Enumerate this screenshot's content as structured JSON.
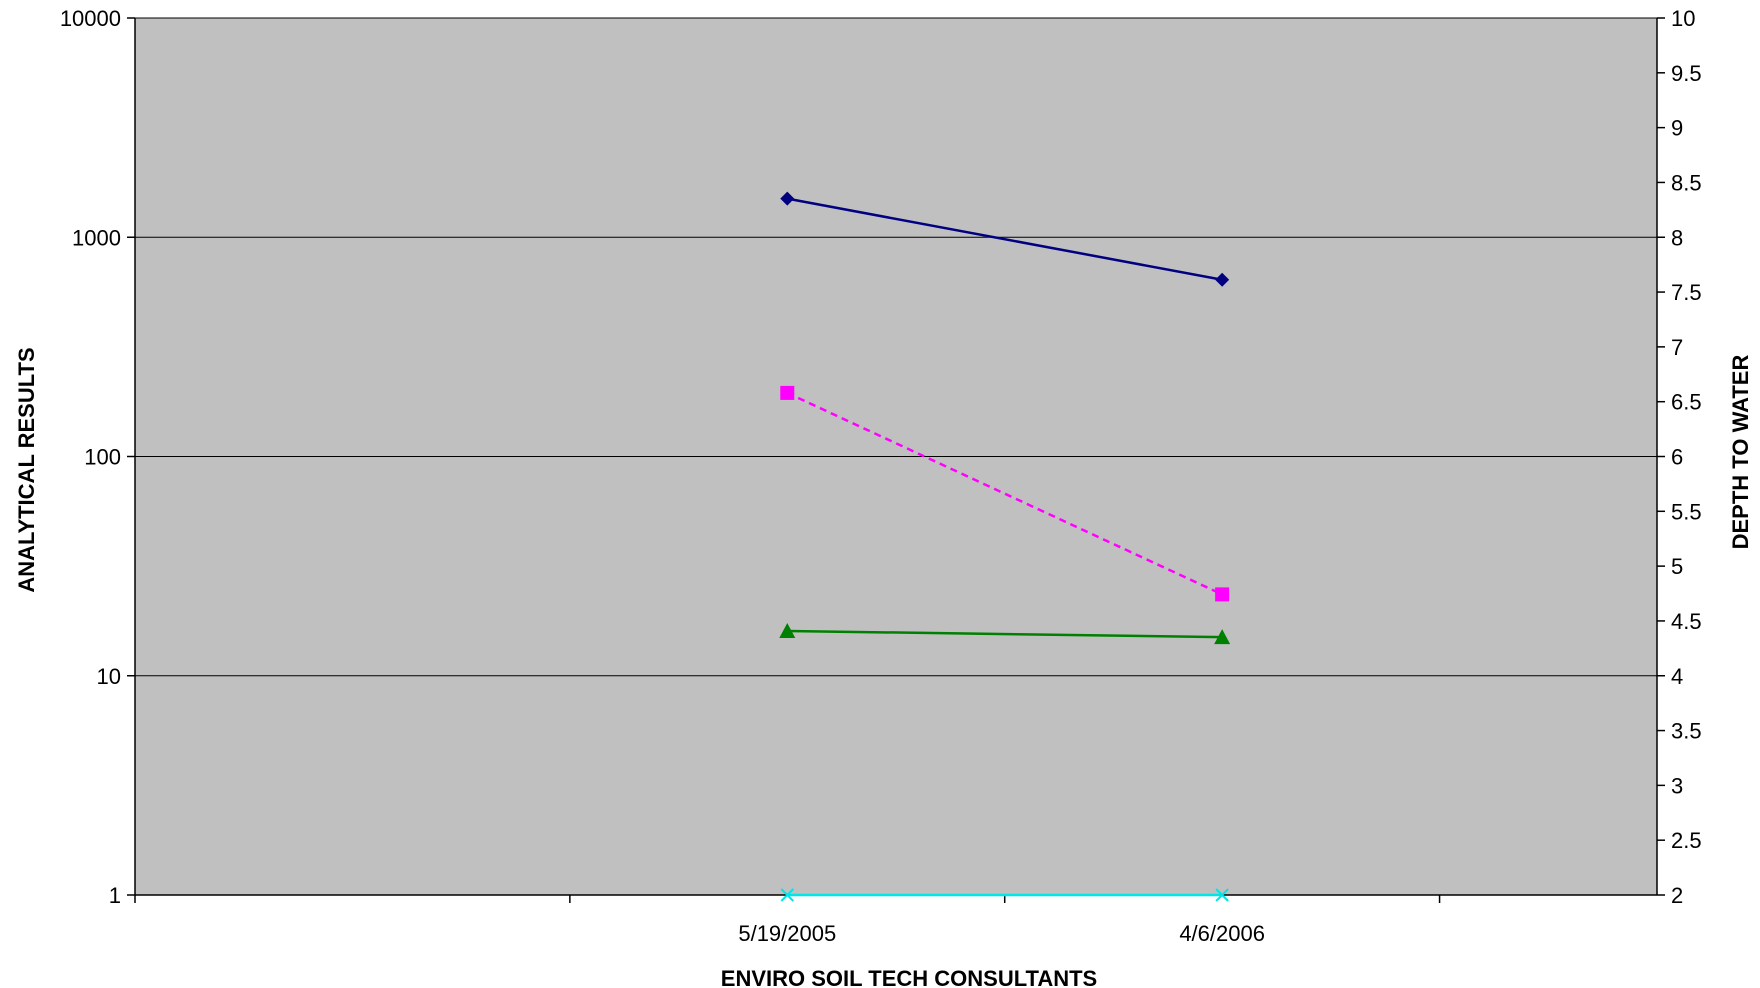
{
  "chart_data": {
    "type": "line",
    "title": "",
    "xlabel": "ENVIRO SOIL TECH CONSULTANTS",
    "ylabel": "ANALYTICAL RESULTS",
    "y2label": "DEPTH TO WATER",
    "y_scale": "log",
    "ylim": [
      1,
      10000
    ],
    "y_ticks": [
      "1",
      "10",
      "100",
      "1000",
      "10000"
    ],
    "y2lim": [
      2,
      10
    ],
    "y2_ticks": [
      "2",
      "2.5",
      "3",
      "3.5",
      "4",
      "4.5",
      "5",
      "5.5",
      "6",
      "6.5",
      "7",
      "7.5",
      "8",
      "8.5",
      "9",
      "9.5",
      "10"
    ],
    "categories": [
      "",
      "5/19/2005",
      "4/6/2006"
    ],
    "grid": true,
    "plot_background": "#c0c0c0",
    "series": [
      {
        "values": [
          null,
          1500,
          640
        ],
        "color": "#000080",
        "marker": "diamond",
        "dash": false
      },
      {
        "values": [
          null,
          195,
          23.5
        ],
        "color": "#ff00ff",
        "marker": "square",
        "dash": true
      },
      {
        "values": [
          null,
          16,
          15
        ],
        "color": "#008000",
        "marker": "triangle",
        "dash": false
      },
      {
        "values": [
          null,
          1,
          1
        ],
        "color": "#00e5e5",
        "marker": "x",
        "dash": false
      }
    ]
  }
}
